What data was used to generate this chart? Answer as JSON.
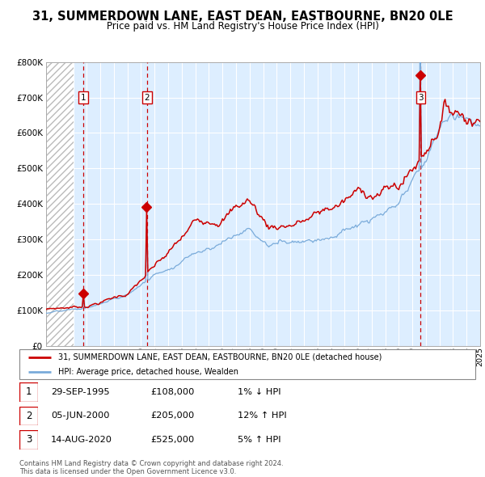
{
  "title": "31, SUMMERDOWN LANE, EAST DEAN, EASTBOURNE, BN20 0LE",
  "subtitle": "Price paid vs. HM Land Registry's House Price Index (HPI)",
  "year_start": 1993,
  "year_end": 2025,
  "ylim": [
    0,
    800000
  ],
  "yticks": [
    0,
    100000,
    200000,
    300000,
    400000,
    500000,
    600000,
    700000,
    800000
  ],
  "ytick_labels": [
    "£0",
    "£100K",
    "£200K",
    "£300K",
    "£400K",
    "£500K",
    "£600K",
    "£700K",
    "£800K"
  ],
  "sales": [
    {
      "index": 1,
      "date_num": 1995.75,
      "price": 108000,
      "date_str": "29-SEP-1995",
      "price_str": "£108,000",
      "hpi_str": "1% ↓ HPI"
    },
    {
      "index": 2,
      "date_num": 2000.43,
      "price": 205000,
      "date_str": "05-JUN-2000",
      "price_str": "£205,000",
      "hpi_str": "12% ↑ HPI"
    },
    {
      "index": 3,
      "date_num": 2020.62,
      "price": 525000,
      "date_str": "14-AUG-2020",
      "price_str": "£525,000",
      "hpi_str": "5% ↑ HPI"
    }
  ],
  "legend_red": "31, SUMMERDOWN LANE, EAST DEAN, EASTBOURNE, BN20 0LE (detached house)",
  "legend_blue": "HPI: Average price, detached house, Wealden",
  "footnote1": "Contains HM Land Registry data © Crown copyright and database right 2024.",
  "footnote2": "This data is licensed under the Open Government Licence v3.0.",
  "red_color": "#cc0000",
  "blue_color": "#7aabda",
  "bg_chart": "#ddeeff",
  "grid_color": "#ffffff",
  "vline_color": "#cc0000",
  "marker_color": "#cc0000",
  "hatch_color": "#bbbbbb"
}
